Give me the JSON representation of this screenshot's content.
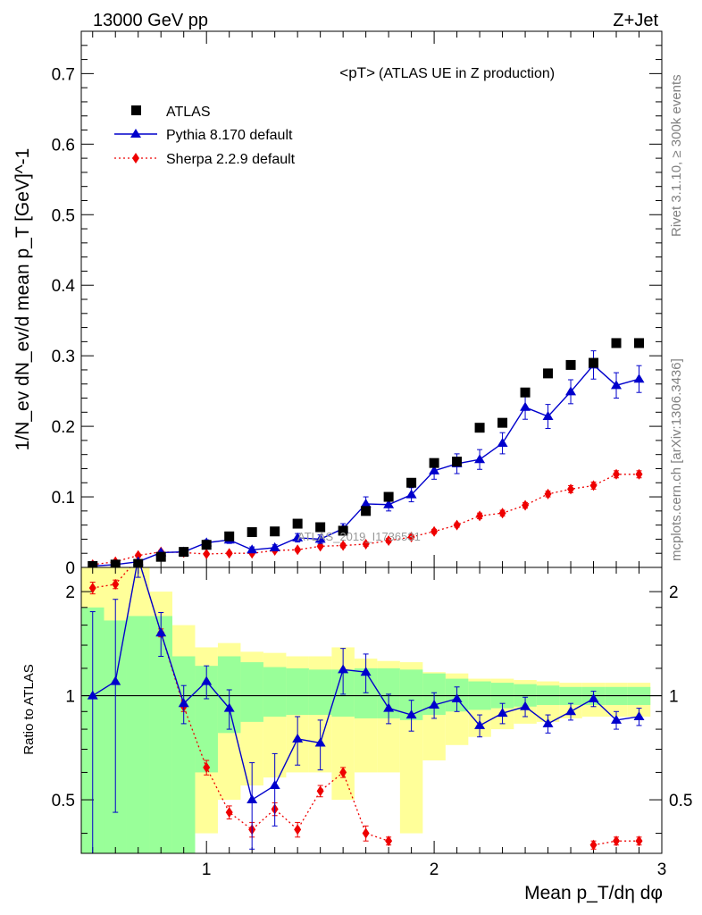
{
  "header": {
    "left": "13000 GeV pp",
    "right": "Z+Jet",
    "side_top": "Rivet 3.1.10, ≥ 300k events",
    "side_bottom": "mcplots.cern.ch [arXiv:1306.3436]"
  },
  "colors": {
    "data": "#000000",
    "pythia": "#0000cc",
    "sherpa": "#ee0000",
    "band_inner": "#99ff99",
    "band_outer": "#ffff99"
  },
  "chart_data": [
    {
      "type": "scatter",
      "panel": "main",
      "title": "<pT>",
      "title_suffix": "(ATLAS UE in Z production)",
      "watermark": "ATLAS_2019_I1736531",
      "ylabel": "1/N_ev dN_ev/d mean p_T [GeV]^-1",
      "xlim": [
        0.45,
        3.0
      ],
      "ylim": [
        0,
        0.76
      ],
      "yticks": [
        0,
        0.1,
        0.2,
        0.3,
        0.4,
        0.5,
        0.6,
        0.7
      ],
      "ytick_labels": [
        "0",
        "0.1",
        "0.2",
        "0.3",
        "0.4",
        "0.5",
        "0.6",
        "0.7"
      ],
      "legend_position": "top-left",
      "x": [
        0.5,
        0.6,
        0.7,
        0.8,
        0.9,
        1.0,
        1.1,
        1.2,
        1.3,
        1.4,
        1.5,
        1.6,
        1.7,
        1.8,
        1.9,
        2.0,
        2.1,
        2.2,
        2.3,
        2.4,
        2.5,
        2.6,
        2.7,
        2.8,
        2.9
      ],
      "series": [
        {
          "name": "ATLAS",
          "style": "markers",
          "values": [
            0.002,
            0.004,
            0.005,
            0.015,
            0.022,
            0.032,
            0.044,
            0.05,
            0.051,
            0.062,
            0.057,
            0.052,
            0.08,
            0.1,
            0.12,
            0.148,
            0.15,
            0.198,
            0.205,
            0.248,
            0.275,
            0.287,
            0.29,
            0.318,
            0.318
          ]
        },
        {
          "name": "Pythia 8.170 default",
          "style": "line",
          "values": [
            0.002,
            0.004,
            0.008,
            0.021,
            0.022,
            0.035,
            0.039,
            0.025,
            0.028,
            0.042,
            0.04,
            0.055,
            0.09,
            0.089,
            0.103,
            0.137,
            0.147,
            0.153,
            0.176,
            0.227,
            0.214,
            0.249,
            0.287,
            0.258,
            0.267
          ],
          "errors": [
            0.001,
            0.001,
            0.002,
            0.002,
            0.003,
            0.004,
            0.005,
            0.004,
            0.004,
            0.006,
            0.006,
            0.007,
            0.01,
            0.009,
            0.01,
            0.012,
            0.014,
            0.014,
            0.015,
            0.017,
            0.017,
            0.017,
            0.02,
            0.018,
            0.019
          ]
        },
        {
          "name": "Sherpa 2.2.9 default",
          "style": "dotted",
          "values": [
            0.004,
            0.008,
            0.017,
            0.022,
            0.021,
            0.019,
            0.02,
            0.02,
            0.024,
            0.025,
            0.03,
            0.031,
            0.033,
            0.038,
            0.043,
            0.051,
            0.06,
            0.073,
            0.077,
            0.088,
            0.104,
            0.111,
            0.116,
            0.132,
            0.132
          ],
          "errors": [
            0.001,
            0.001,
            0.002,
            0.002,
            0.002,
            0.002,
            0.002,
            0.002,
            0.002,
            0.002,
            0.002,
            0.003,
            0.003,
            0.003,
            0.003,
            0.003,
            0.003,
            0.004,
            0.004,
            0.004,
            0.004,
            0.005,
            0.005,
            0.005,
            0.005
          ]
        }
      ]
    },
    {
      "type": "scatter",
      "panel": "ratio",
      "ylabel": "Ratio to ATLAS",
      "xlabel": "Mean p_T/dη dφ",
      "xlim": [
        0.45,
        3.0
      ],
      "ylim": [
        0.35,
        2.35
      ],
      "yscale": "log",
      "yticks": [
        0.5,
        1,
        2
      ],
      "ytick_labels": [
        "0.5",
        "1",
        "2"
      ],
      "xticks": [
        1,
        2,
        3
      ],
      "xtick_labels": [
        "1",
        "2",
        "3"
      ],
      "reference_line": 1,
      "bin_edges": [
        0.45,
        0.55,
        0.65,
        0.75,
        0.85,
        0.95,
        1.05,
        1.15,
        1.25,
        1.35,
        1.45,
        1.55,
        1.65,
        1.75,
        1.85,
        1.95,
        2.05,
        2.15,
        2.25,
        2.35,
        2.45,
        2.55,
        2.65,
        2.75,
        2.85,
        2.95
      ],
      "band_inner": [
        [
          0.3,
          1.8
        ],
        [
          0.3,
          1.65
        ],
        [
          0.3,
          1.7
        ],
        [
          0.3,
          1.7
        ],
        [
          0.3,
          1.3
        ],
        [
          0.6,
          1.22
        ],
        [
          0.78,
          1.3
        ],
        [
          0.84,
          1.25
        ],
        [
          0.87,
          1.21
        ],
        [
          0.88,
          1.2
        ],
        [
          0.88,
          1.19
        ],
        [
          0.87,
          1.19
        ],
        [
          0.86,
          1.2
        ],
        [
          0.86,
          1.2
        ],
        [
          0.85,
          1.19
        ],
        [
          0.88,
          1.16
        ],
        [
          0.9,
          1.12
        ],
        [
          0.91,
          1.1
        ],
        [
          0.92,
          1.09
        ],
        [
          0.93,
          1.08
        ],
        [
          0.94,
          1.07
        ],
        [
          0.94,
          1.06
        ],
        [
          0.94,
          1.06
        ],
        [
          0.94,
          1.06
        ],
        [
          0.94,
          1.06
        ]
      ],
      "band_outer": [
        [
          0.3,
          2.5
        ],
        [
          0.3,
          2.5
        ],
        [
          0.3,
          2.5
        ],
        [
          0.3,
          2.0
        ],
        [
          0.3,
          1.6
        ],
        [
          0.4,
          1.38
        ],
        [
          0.5,
          1.42
        ],
        [
          0.55,
          1.34
        ],
        [
          0.58,
          1.33
        ],
        [
          0.6,
          1.3
        ],
        [
          0.6,
          1.3
        ],
        [
          0.5,
          1.38
        ],
        [
          0.6,
          1.28
        ],
        [
          0.6,
          1.26
        ],
        [
          0.4,
          1.25
        ],
        [
          0.65,
          1.17
        ],
        [
          0.72,
          1.16
        ],
        [
          0.76,
          1.12
        ],
        [
          0.8,
          1.12
        ],
        [
          0.83,
          1.11
        ],
        [
          0.84,
          1.1
        ],
        [
          0.86,
          1.09
        ],
        [
          0.87,
          1.09
        ],
        [
          0.87,
          1.09
        ],
        [
          0.87,
          1.09
        ]
      ],
      "series": [
        {
          "name": "Pythia 8.170 default",
          "values": [
            1.0,
            1.1,
            2.5,
            1.52,
            0.95,
            1.1,
            0.92,
            0.5,
            0.55,
            0.75,
            0.73,
            1.19,
            1.17,
            0.92,
            0.88,
            0.94,
            0.98,
            0.82,
            0.89,
            0.93,
            0.83,
            0.9,
            0.98,
            0.85,
            0.87
          ],
          "errors_up": [
            0.75,
            0.8,
            0.3,
            0.22,
            0.12,
            0.12,
            0.12,
            0.14,
            0.13,
            0.12,
            0.12,
            0.18,
            0.15,
            0.09,
            0.09,
            0.08,
            0.08,
            0.06,
            0.06,
            0.06,
            0.05,
            0.05,
            0.05,
            0.05,
            0.05
          ],
          "errors_down": [
            0.65,
            0.64,
            0.3,
            0.22,
            0.12,
            0.12,
            0.12,
            0.14,
            0.13,
            0.12,
            0.12,
            0.18,
            0.15,
            0.09,
            0.09,
            0.08,
            0.08,
            0.06,
            0.06,
            0.06,
            0.05,
            0.05,
            0.05,
            0.05,
            0.05
          ]
        },
        {
          "name": "Sherpa 2.2.9 default",
          "values": [
            2.05,
            2.1,
            2.5,
            1.52,
            0.93,
            0.62,
            0.46,
            0.41,
            0.47,
            0.41,
            0.53,
            0.6,
            0.4,
            0.38,
            null,
            null,
            null,
            null,
            null,
            null,
            null,
            null,
            0.37,
            0.38,
            0.38
          ],
          "errors_up": [
            0.08,
            0.06,
            0.06,
            0.04,
            0.03,
            0.03,
            0.02,
            0.02,
            0.02,
            0.02,
            0.02,
            0.02,
            0.02,
            0.01,
            null,
            null,
            null,
            null,
            null,
            null,
            null,
            null,
            0.01,
            0.01,
            0.01
          ],
          "errors_down": [
            0.08,
            0.06,
            0.06,
            0.04,
            0.03,
            0.03,
            0.02,
            0.02,
            0.02,
            0.02,
            0.02,
            0.02,
            0.02,
            0.01,
            null,
            null,
            null,
            null,
            null,
            null,
            null,
            null,
            0.01,
            0.01,
            0.01
          ]
        }
      ]
    }
  ]
}
